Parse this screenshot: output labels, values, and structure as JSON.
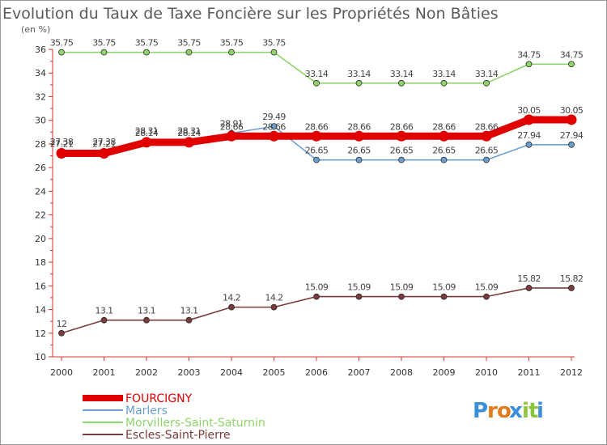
{
  "chart_data": {
    "type": "line",
    "title": "Evolution du Taux de Taxe Foncière sur les Propriétés Non Bâties",
    "ylabel": "(en %)",
    "xlabel": "",
    "ylim": [
      10,
      36
    ],
    "yticks": [
      "10",
      "12",
      "14",
      "16",
      "18",
      "20",
      "22",
      "24",
      "26",
      "28",
      "30",
      "32",
      "34",
      "36"
    ],
    "categories": [
      "2000",
      "2001",
      "2002",
      "2003",
      "2004",
      "2005",
      "2006",
      "2007",
      "2008",
      "2009",
      "2010",
      "2011",
      "2012"
    ],
    "series": [
      {
        "name": "FOURCIGNY",
        "color": "#e00000",
        "values": [
          27.21,
          27.21,
          28.14,
          28.14,
          28.66,
          28.66,
          28.66,
          28.66,
          28.66,
          28.66,
          28.66,
          30.05,
          30.05
        ],
        "labels": [
          "27.21",
          "27.21",
          "28.14",
          "28.14",
          "28.66",
          "28.66",
          "28.66",
          "28.66",
          "28.66",
          "28.66",
          "28.66",
          "30.05",
          "30.05"
        ]
      },
      {
        "name": "Marlers",
        "color": "#6b9fd1",
        "values": [
          27.38,
          27.38,
          28.31,
          28.31,
          28.91,
          29.49,
          26.65,
          26.65,
          26.65,
          26.65,
          26.65,
          27.94,
          27.94
        ],
        "labels": [
          "27.38",
          "27.38",
          "28.31",
          "28.31",
          "28.91",
          "29.49",
          "26.65",
          "26.65",
          "26.65",
          "26.65",
          "26.65",
          "27.94",
          "27.94"
        ]
      },
      {
        "name": "Morvillers-Saint-Saturnin",
        "color": "#8fd46a",
        "values": [
          35.75,
          35.75,
          35.75,
          35.75,
          35.75,
          35.75,
          33.14,
          33.14,
          33.14,
          33.14,
          33.14,
          34.75,
          34.75
        ],
        "labels": [
          "35.75",
          "35.75",
          "35.75",
          "35.75",
          "35.75",
          "35.75",
          "33.14",
          "33.14",
          "33.14",
          "33.14",
          "33.14",
          "34.75",
          "34.75"
        ]
      },
      {
        "name": "Escles-Saint-Pierre",
        "color": "#7a3b3b",
        "values": [
          12,
          13.1,
          13.1,
          13.1,
          14.2,
          14.2,
          15.09,
          15.09,
          15.09,
          15.09,
          15.09,
          15.82,
          15.82
        ],
        "labels": [
          "12",
          "13.1",
          "13.1",
          "13.1",
          "14.2",
          "14.2",
          "15.09",
          "15.09",
          "15.09",
          "15.09",
          "15.09",
          "15.82",
          "15.82"
        ]
      }
    ],
    "legend": "bottom-left",
    "grid": false
  },
  "branding": {
    "logo_text": "Proxiti",
    "letters": [
      "P",
      "r",
      "o",
      "x",
      "i",
      "t",
      "i"
    ],
    "letter_colors": [
      "#3b8fd8",
      "#e07b1f",
      "#e07b1f",
      "#3b8fd8",
      "#8cc43c",
      "#8cc43c",
      "#3b8fd8"
    ]
  }
}
